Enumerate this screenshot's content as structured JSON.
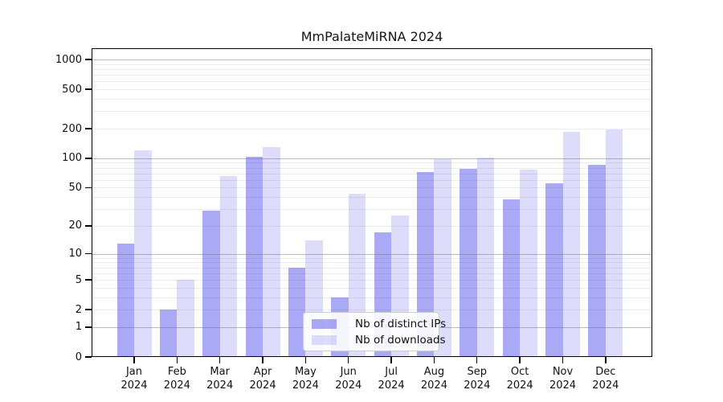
{
  "title": "MmPalateMiRNA 2024",
  "chart_data": {
    "type": "bar",
    "title": "MmPalateMiRNA 2024",
    "categories": [
      "Jan",
      "Feb",
      "Mar",
      "Apr",
      "May",
      "Jun",
      "Jul",
      "Aug",
      "Sep",
      "Oct",
      "Nov",
      "Dec"
    ],
    "category_year": "2024",
    "series": [
      {
        "name": "Nb of distinct IPs",
        "color_hex": "#a9a9f4",
        "color_rgba": "rgba(99,99,237,0.55)",
        "values": [
          13,
          2,
          29,
          104,
          7,
          3,
          17,
          72,
          78,
          38,
          55,
          85
        ]
      },
      {
        "name": "Nb of downloads",
        "color_hex": "#dcdcfa",
        "color_rgba": "rgba(99,99,237,0.22)",
        "values": [
          120,
          5,
          66,
          130,
          14,
          43,
          26,
          97,
          101,
          76,
          185,
          196
        ]
      }
    ],
    "y_ticks": [
      0,
      1,
      2,
      5,
      10,
      20,
      50,
      100,
      200,
      500,
      1000
    ],
    "y_scale": "log10(1+v)",
    "ylim": [
      0,
      1150
    ],
    "grid": "horizontal",
    "grid_major_values": [
      1,
      10,
      100,
      1000
    ],
    "grid_minor_values": [
      2,
      3,
      4,
      5,
      6,
      7,
      8,
      9,
      20,
      30,
      40,
      50,
      60,
      70,
      80,
      90,
      200,
      300,
      400,
      500,
      600,
      700,
      800,
      900
    ],
    "legend_position": "bottom-center",
    "axis_color": "#000000",
    "background_color": "#ffffff"
  }
}
